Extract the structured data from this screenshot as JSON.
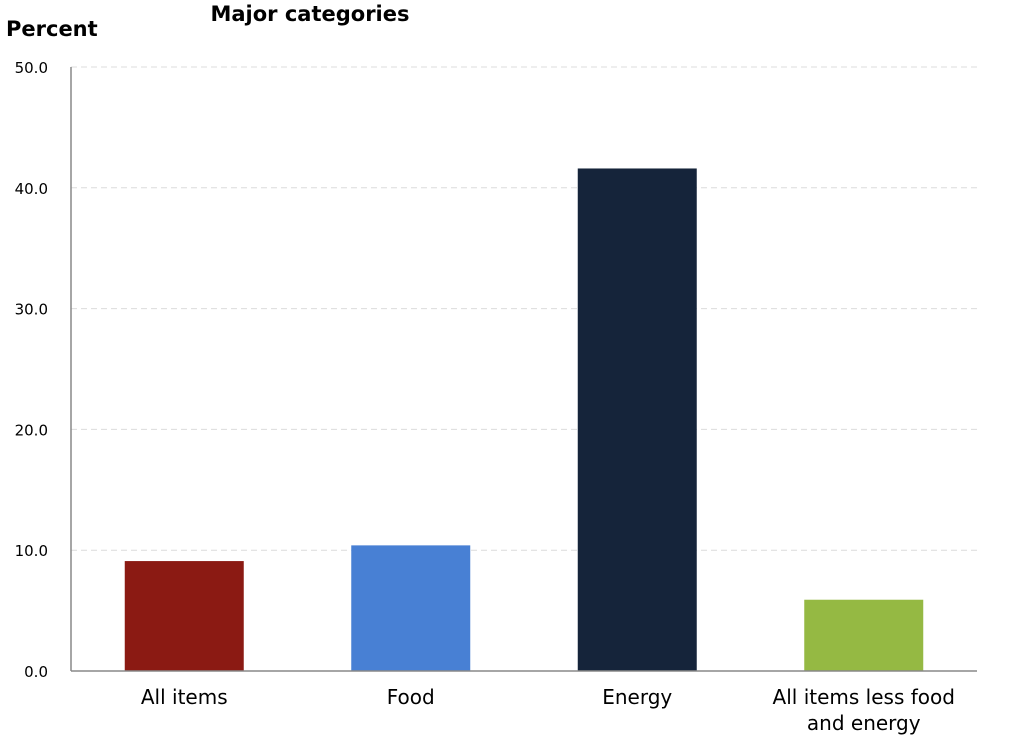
{
  "chart_data": {
    "type": "bar",
    "title": "Major categories",
    "ylabel": "Percent",
    "xlabel": "",
    "categories": [
      "All items",
      "Food",
      "Energy",
      "All items less food and energy"
    ],
    "category_lines": [
      [
        "All items"
      ],
      [
        "Food"
      ],
      [
        "Energy"
      ],
      [
        "All items less food",
        "and energy"
      ]
    ],
    "values": [
      9.1,
      10.4,
      41.6,
      5.9
    ],
    "bar_colors": [
      "#8b1a13",
      "#4880d4",
      "#15243a",
      "#95b943"
    ],
    "ylim": [
      0,
      50
    ],
    "yticks": [
      "0.0",
      "10.0",
      "20.0",
      "30.0",
      "40.0",
      "50.0"
    ],
    "grid": true,
    "legend": "none"
  }
}
